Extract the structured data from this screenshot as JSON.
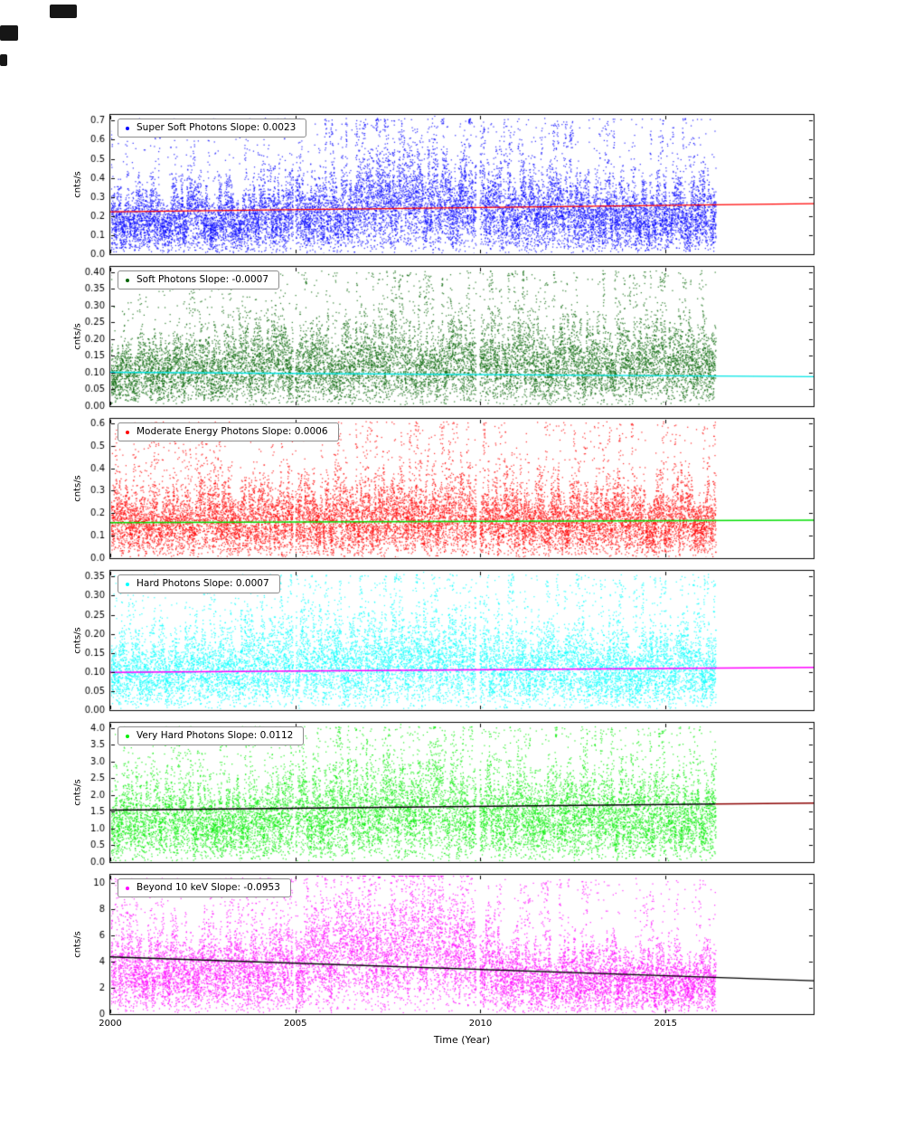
{
  "figure": {
    "background": "#ffffff",
    "xlabel": "Time (Year)",
    "xlim": [
      2000,
      2019
    ],
    "xticks": [
      2000,
      2005,
      2010,
      2015
    ],
    "x_data_start": 2000.0,
    "x_data_end": 2016.35,
    "gaps": [
      [
        2004.93,
        2004.99
      ],
      [
        2009.87,
        2009.97
      ]
    ],
    "frame_color": "#000000"
  },
  "chart_data": {
    "type": "scatter",
    "description": "Six stacked time-series scatter panels of photon count rates (cnts/s) vs time (year), each with a linear trend line",
    "panels": [
      {
        "label": "Super Soft Photons Slope: 0.0023",
        "slope": 0.0023,
        "ylabel": "cnts/s",
        "point_color": "#0000ff",
        "ylim": [
          0,
          0.73
        ],
        "yticks": [
          0.0,
          0.1,
          0.2,
          0.3,
          0.4,
          0.5,
          0.6,
          0.7
        ],
        "tick_decimals": 1,
        "trend": [
          {
            "x0": 2000,
            "y0": 0.222,
            "x1": 2019,
            "y1": 0.265,
            "color": "#ff0000"
          }
        ],
        "envelope": [
          [
            2000,
            0.34
          ],
          [
            2003,
            0.36
          ],
          [
            2005,
            0.42
          ],
          [
            2007,
            0.5
          ],
          [
            2008.7,
            0.55
          ],
          [
            2010,
            0.5
          ],
          [
            2011.5,
            0.44
          ],
          [
            2013,
            0.4
          ],
          [
            2014.5,
            0.38
          ],
          [
            2016.35,
            0.4
          ]
        ],
        "spike_max": 0.715,
        "n_points": 16000,
        "seed": 11
      },
      {
        "label": "Soft Photons Slope: -0.0007",
        "slope": -0.0007,
        "ylabel": "cnts/s",
        "point_color": "#006400",
        "ylim": [
          0,
          0.415
        ],
        "yticks": [
          0.0,
          0.05,
          0.1,
          0.15,
          0.2,
          0.25,
          0.3,
          0.35,
          0.4
        ],
        "tick_decimals": 2,
        "trend": [
          {
            "x0": 2000,
            "y0": 0.101,
            "x1": 2019,
            "y1": 0.088,
            "color": "#00e5e5"
          }
        ],
        "envelope": [
          [
            2000,
            0.21
          ],
          [
            2004,
            0.23
          ],
          [
            2007,
            0.25
          ],
          [
            2009,
            0.26
          ],
          [
            2011,
            0.24
          ],
          [
            2013,
            0.235
          ],
          [
            2016.35,
            0.245
          ]
        ],
        "spike_max": 0.405,
        "n_points": 13000,
        "seed": 22
      },
      {
        "label": "Moderate Energy Photons Slope: 0.0006",
        "slope": 0.0006,
        "ylabel": "cnts/s",
        "point_color": "#ff0000",
        "ylim": [
          0,
          0.62
        ],
        "yticks": [
          0.0,
          0.1,
          0.2,
          0.3,
          0.4,
          0.5,
          0.6
        ],
        "tick_decimals": 1,
        "trend": [
          {
            "x0": 2000,
            "y0": 0.158,
            "x1": 2019,
            "y1": 0.169,
            "color": "#00dd00"
          }
        ],
        "envelope": [
          [
            2000,
            0.3
          ],
          [
            2004,
            0.33
          ],
          [
            2007,
            0.35
          ],
          [
            2009,
            0.36
          ],
          [
            2011,
            0.34
          ],
          [
            2013,
            0.33
          ],
          [
            2016.35,
            0.34
          ]
        ],
        "spike_max": 0.61,
        "n_points": 15000,
        "seed": 33
      },
      {
        "label": "Hard Photons Slope: 0.0007",
        "slope": 0.0007,
        "ylabel": "cnts/s",
        "point_color": "#00ffff",
        "ylim": [
          0,
          0.365
        ],
        "yticks": [
          0.0,
          0.05,
          0.1,
          0.15,
          0.2,
          0.25,
          0.3,
          0.35
        ],
        "tick_decimals": 2,
        "trend": [
          {
            "x0": 2000,
            "y0": 0.099,
            "x1": 2019,
            "y1": 0.112,
            "color": "#ff00ff"
          }
        ],
        "envelope": [
          [
            2000,
            0.19
          ],
          [
            2003,
            0.22
          ],
          [
            2006,
            0.25
          ],
          [
            2008.5,
            0.27
          ],
          [
            2010,
            0.25
          ],
          [
            2012,
            0.22
          ],
          [
            2014,
            0.21
          ],
          [
            2016.35,
            0.22
          ]
        ],
        "spike_max": 0.358,
        "n_points": 13000,
        "seed": 44
      },
      {
        "label": "Very Hard Photons Slope: 0.0112",
        "slope": 0.0112,
        "ylabel": "cnts/s",
        "point_color": "#00ee00",
        "ylim": [
          0,
          4.15
        ],
        "yticks": [
          0.0,
          0.5,
          1.0,
          1.5,
          2.0,
          2.5,
          3.0,
          3.5,
          4.0
        ],
        "tick_decimals": 1,
        "trend": [
          {
            "x0": 2000,
            "y0": 1.55,
            "x1": 2016.35,
            "y1": 1.73,
            "color": "#000000"
          },
          {
            "x0": 2016.35,
            "y0": 1.73,
            "x1": 2019,
            "y1": 1.76,
            "color": "#8b0000"
          }
        ],
        "envelope": [
          [
            2000,
            2.3
          ],
          [
            2003,
            2.5
          ],
          [
            2005,
            2.7
          ],
          [
            2007,
            3.0
          ],
          [
            2008.7,
            3.2
          ],
          [
            2010,
            3.05
          ],
          [
            2011.5,
            2.8
          ],
          [
            2013,
            2.6
          ],
          [
            2016.35,
            2.6
          ]
        ],
        "spike_max": 4.05,
        "n_points": 14000,
        "seed": 55
      },
      {
        "label": "Beyond 10 keV Slope: -0.0953",
        "slope": -0.0953,
        "ylabel": "cnts/s",
        "point_color": "#ff00ff",
        "ylim": [
          0,
          10.6
        ],
        "yticks": [
          0,
          2,
          4,
          6,
          8,
          10
        ],
        "tick_decimals": 0,
        "trend": [
          {
            "x0": 2000,
            "y0": 4.35,
            "x1": 2019,
            "y1": 2.54,
            "color": "#000000"
          }
        ],
        "envelope": [
          [
            2000,
            6.2
          ],
          [
            2003,
            6.6
          ],
          [
            2005,
            7.2
          ],
          [
            2006.3,
            9.0
          ],
          [
            2008,
            9.8
          ],
          [
            2009.5,
            9.6
          ],
          [
            2010.3,
            6.6
          ],
          [
            2011.5,
            5.8
          ],
          [
            2013,
            5.3
          ],
          [
            2014.5,
            4.9
          ],
          [
            2016.35,
            4.7
          ]
        ],
        "spike_max": 10.4,
        "n_points": 14000,
        "seed": 66
      }
    ]
  }
}
